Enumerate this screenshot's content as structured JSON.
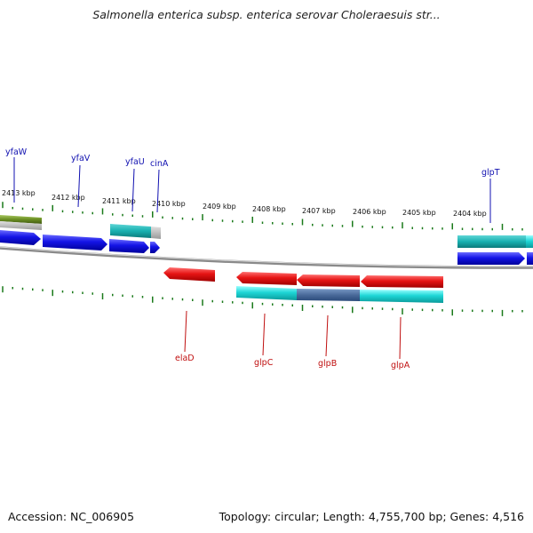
{
  "title": "Salmonella enterica subsp. enterica serovar Choleraesuis str...",
  "footer": {
    "accession": "Accession: NC_006905",
    "stats": "Topology: circular; Length: 4,755,700 bp; Genes: 4,516"
  },
  "colors": {
    "forward_cds": "#1414e6",
    "reverse_cds": "#e61414",
    "rna": "#00c8c8",
    "other": "#6b8e23",
    "tick": "#1a7a1a",
    "backbone": "#888888"
  },
  "scale": {
    "labels": [
      "2413 kbp",
      "2412 kbp",
      "2411 kbp",
      "2410 kbp",
      "2409 kbp",
      "2408 kbp",
      "2407 kbp",
      "2406 kbp",
      "2405 kbp",
      "2404 kbp"
    ]
  },
  "genes": {
    "forward": [
      "yfaW",
      "yfaV",
      "yfaU",
      "cinA",
      "glpT"
    ],
    "reverse": [
      "elaD",
      "glpC",
      "glpB",
      "glpA"
    ]
  }
}
